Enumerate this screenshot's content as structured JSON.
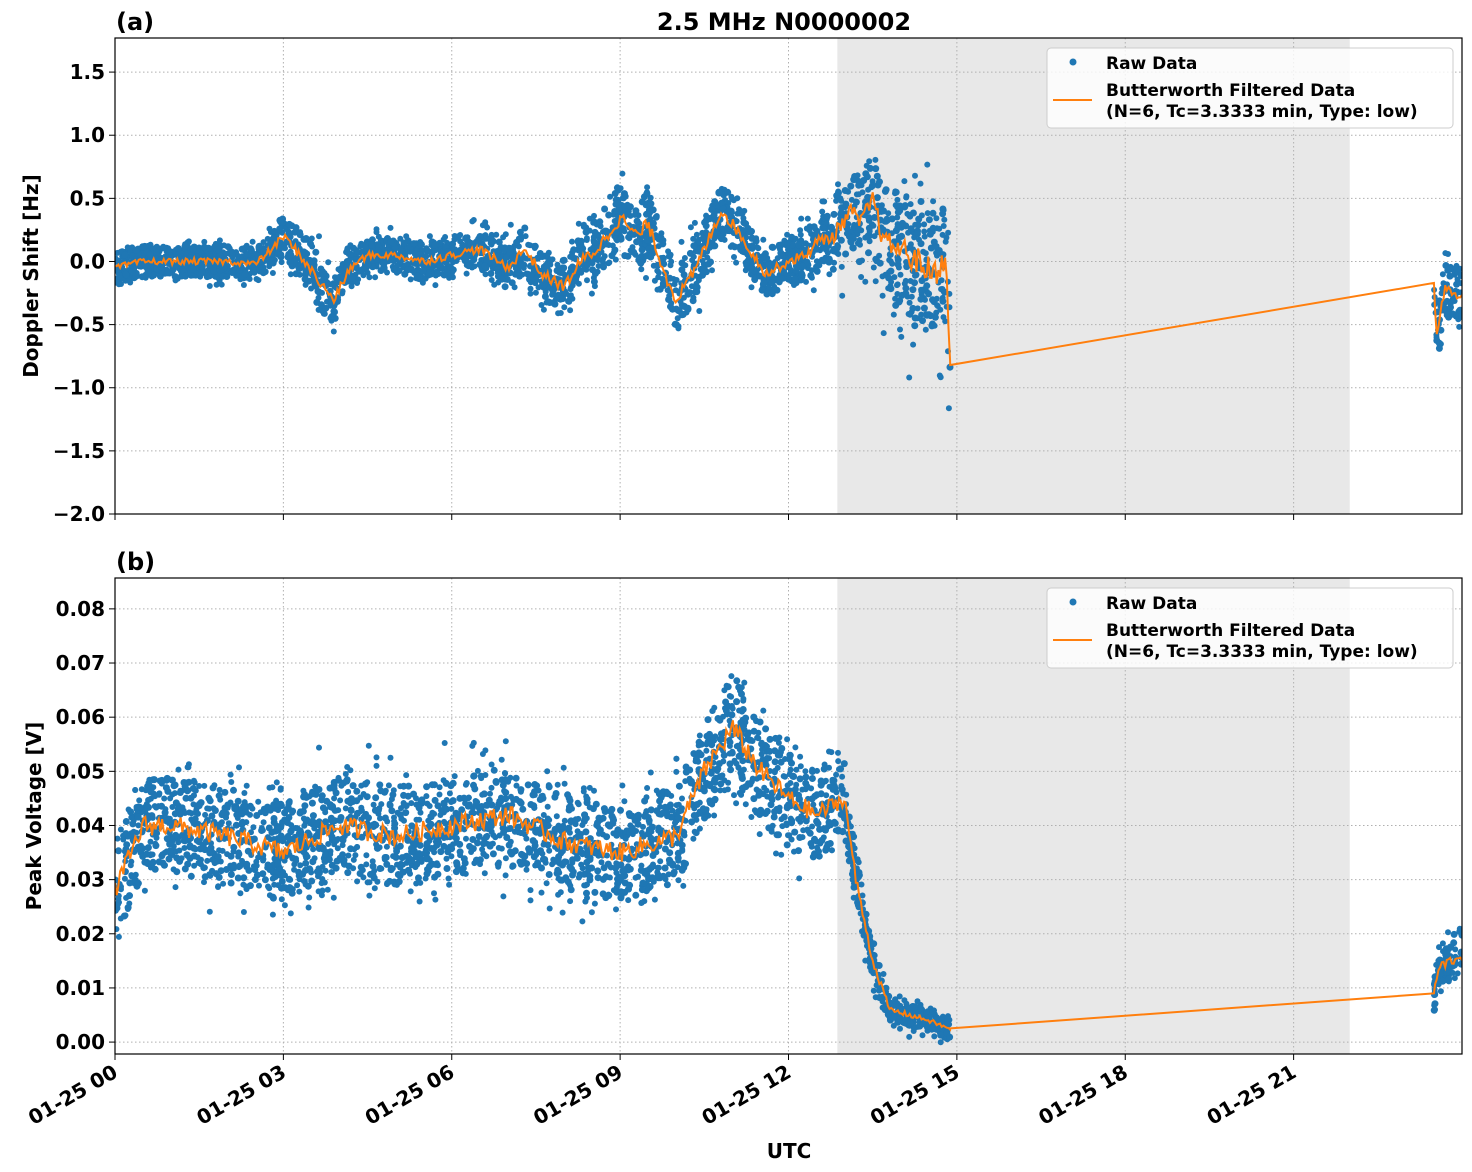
{
  "chart_data": [
    {
      "type": "scatter",
      "panel_label": "(a)",
      "title": "2.5 MHz N0000002",
      "ylabel": "Doppler Shift [Hz]",
      "xlabel": "",
      "xlim_hours": [
        0,
        24
      ],
      "ylim": [
        -2.0,
        1.77
      ],
      "yticks": [
        -2.0,
        -1.5,
        -1.0,
        -0.5,
        0.0,
        0.5,
        1.0,
        1.5
      ],
      "ytick_labels": [
        "−2.0",
        "−1.5",
        "−1.0",
        "−0.5",
        "0.0",
        "0.5",
        "1.0",
        "1.5"
      ],
      "grid": true,
      "legend_position": "top-right",
      "shaded_region_hours": [
        12.87,
        22.0
      ],
      "series": [
        {
          "name": "Raw Data",
          "kind": "scatter",
          "color": "#1f77b4",
          "envelope": [
            [
              0,
              0.2
            ],
            [
              2.5,
              0.2
            ],
            [
              3.5,
              0.35
            ],
            [
              4.5,
              0.22
            ],
            [
              6.5,
              0.25
            ],
            [
              8,
              0.35
            ],
            [
              9,
              0.45
            ],
            [
              10,
              0.4
            ],
            [
              11,
              0.35
            ],
            [
              12,
              0.3
            ],
            [
              13,
              0.5
            ],
            [
              13.7,
              0.7
            ],
            [
              14.2,
              0.9
            ],
            [
              14.85,
              0.9
            ],
            [
              23.5,
              0.4
            ],
            [
              24,
              0.35
            ]
          ]
        },
        {
          "name": "Butterworth Filtered Data\n(N=6, Tc=3.3333 min, Type: low)",
          "kind": "line",
          "color": "#ff7f0e",
          "points": [
            [
              0,
              -0.05
            ],
            [
              0.5,
              0
            ],
            [
              1,
              0
            ],
            [
              2,
              0
            ],
            [
              2.5,
              -0.02
            ],
            [
              2.8,
              0.1
            ],
            [
              3,
              0.2
            ],
            [
              3.3,
              0.05
            ],
            [
              3.7,
              -0.2
            ],
            [
              3.9,
              -0.3
            ],
            [
              4.2,
              -0.05
            ],
            [
              4.5,
              0.05
            ],
            [
              5,
              0.05
            ],
            [
              5.5,
              0
            ],
            [
              6,
              0.05
            ],
            [
              6.5,
              0.1
            ],
            [
              7,
              -0.05
            ],
            [
              7.3,
              0.1
            ],
            [
              7.6,
              -0.1
            ],
            [
              8,
              -0.2
            ],
            [
              8.3,
              0
            ],
            [
              8.6,
              0.1
            ],
            [
              9,
              0.35
            ],
            [
              9.3,
              0.2
            ],
            [
              9.5,
              0.3
            ],
            [
              9.8,
              -0.1
            ],
            [
              10,
              -0.3
            ],
            [
              10.3,
              -0.1
            ],
            [
              10.5,
              0.1
            ],
            [
              10.8,
              0.4
            ],
            [
              11,
              0.3
            ],
            [
              11.3,
              0.1
            ],
            [
              11.6,
              -0.1
            ],
            [
              12,
              0
            ],
            [
              12.3,
              0.05
            ],
            [
              12.5,
              0.15
            ],
            [
              12.8,
              0.2
            ],
            [
              13.1,
              0.4
            ],
            [
              13.3,
              0.3
            ],
            [
              13.5,
              0.5
            ],
            [
              13.7,
              0.15
            ],
            [
              14,
              0.1
            ],
            [
              14.3,
              0
            ],
            [
              14.6,
              -0.1
            ],
            [
              14.8,
              0.05
            ],
            [
              14.85,
              -0.6
            ],
            [
              14.88,
              -0.82
            ],
            [
              23.5,
              -0.17
            ],
            [
              23.55,
              -0.6
            ],
            [
              23.7,
              -0.2
            ],
            [
              24,
              -0.3
            ]
          ]
        }
      ],
      "gap_hours": [
        14.88,
        23.5
      ]
    },
    {
      "type": "scatter",
      "panel_label": "(b)",
      "title": "",
      "ylabel": "Peak Voltage [V]",
      "xlabel": "UTC",
      "xlim_hours": [
        0,
        24
      ],
      "ylim": [
        -0.0022,
        0.0857
      ],
      "yticks": [
        0.0,
        0.01,
        0.02,
        0.03,
        0.04,
        0.05,
        0.06,
        0.07,
        0.08
      ],
      "ytick_labels": [
        "0.00",
        "0.01",
        "0.02",
        "0.03",
        "0.04",
        "0.05",
        "0.06",
        "0.07",
        "0.08"
      ],
      "xtick_labels": [
        "01-25 00",
        "01-25 03",
        "01-25 06",
        "01-25 09",
        "01-25 12",
        "01-25 15",
        "01-25 18",
        "01-25 21"
      ],
      "grid": true,
      "legend_position": "top-right",
      "shaded_region_hours": [
        12.87,
        22.0
      ],
      "series": [
        {
          "name": "Raw Data",
          "kind": "scatter",
          "color": "#1f77b4",
          "envelope": [
            [
              0,
              0.015
            ],
            [
              10,
              0.015
            ],
            [
              11,
              0.017
            ],
            [
              12.8,
              0.013
            ],
            [
              13.3,
              0.008
            ],
            [
              13.8,
              0.004
            ],
            [
              14.85,
              0.003
            ],
            [
              23.5,
              0.007
            ],
            [
              24,
              0.008
            ]
          ]
        },
        {
          "name": "Butterworth Filtered Data\n(N=6, Tc=3.3333 min, Type: low)",
          "kind": "line",
          "color": "#ff7f0e",
          "points": [
            [
              0,
              0.028
            ],
            [
              0.5,
              0.04
            ],
            [
              1,
              0.04
            ],
            [
              2,
              0.038
            ],
            [
              3,
              0.035
            ],
            [
              4,
              0.04
            ],
            [
              5,
              0.038
            ],
            [
              6,
              0.04
            ],
            [
              7,
              0.042
            ],
            [
              8,
              0.037
            ],
            [
              9,
              0.035
            ],
            [
              10,
              0.038
            ],
            [
              10.5,
              0.05
            ],
            [
              11,
              0.058
            ],
            [
              11.5,
              0.05
            ],
            [
              12,
              0.045
            ],
            [
              12.5,
              0.042
            ],
            [
              13,
              0.045
            ],
            [
              13.2,
              0.03
            ],
            [
              13.5,
              0.015
            ],
            [
              13.8,
              0.006
            ],
            [
              14.5,
              0.004
            ],
            [
              14.85,
              0.0025
            ],
            [
              23.5,
              0.009
            ],
            [
              23.6,
              0.014
            ],
            [
              24,
              0.016
            ]
          ]
        }
      ],
      "gap_hours": [
        14.88,
        23.5
      ]
    }
  ],
  "legend": {
    "raw": "Raw Data",
    "filt1": "Butterworth Filtered Data",
    "filt2": "(N=6, Tc=3.3333 min, Type: low)"
  }
}
